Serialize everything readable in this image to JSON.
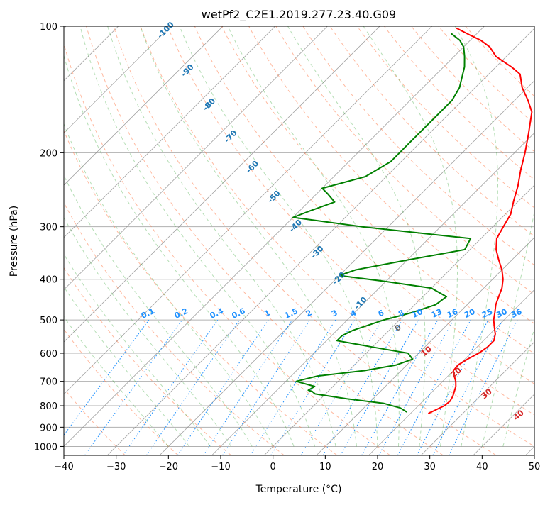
{
  "chart_data": {
    "type": "line",
    "subtype": "skew-t log-p sounding",
    "title": "wetPf2_C2E1.2019.277.23.40.G09",
    "xlabel": "Temperature (°C)",
    "ylabel": "Pressure (hPa)",
    "xlim": [
      -40,
      50
    ],
    "ylim": [
      1050,
      100
    ],
    "yscale": "log",
    "x_ticks": [
      -40,
      -30,
      -20,
      -10,
      0,
      10,
      20,
      30,
      40,
      50
    ],
    "y_ticks": [
      100,
      200,
      300,
      400,
      500,
      600,
      700,
      800,
      900,
      1000
    ],
    "grid": true,
    "colors": {
      "temperature": "#ff0000",
      "dewpoint": "#008000",
      "isotherms": "#888888",
      "dry_adiabats": "#ff7f50",
      "moist_adiabats": "#2ca02c",
      "mixing_ratio": "#1e90ff",
      "skewed_label": "#1f77b4",
      "dry_adiabat_label": "#d62728",
      "zero_label": "#666666"
    },
    "series": [
      {
        "key": "temperature",
        "points": [
          [
            23.4,
            835
          ],
          [
            25.0,
            800
          ],
          [
            25.2,
            780
          ],
          [
            24.8,
            760
          ],
          [
            23.5,
            720
          ],
          [
            22.5,
            700
          ],
          [
            21.2,
            680
          ],
          [
            20.0,
            660
          ],
          [
            19.8,
            640
          ],
          [
            20.5,
            620
          ],
          [
            21.5,
            600
          ],
          [
            22.0,
            580
          ],
          [
            22.0,
            560
          ],
          [
            21.0,
            540
          ],
          [
            19.5,
            520
          ],
          [
            18.0,
            500
          ],
          [
            16.8,
            480
          ],
          [
            15.5,
            460
          ],
          [
            14.5,
            440
          ],
          [
            13.5,
            420
          ],
          [
            12.0,
            400
          ],
          [
            10.0,
            380
          ],
          [
            7.5,
            360
          ],
          [
            5.0,
            340
          ],
          [
            3.0,
            320
          ],
          [
            2.0,
            300
          ],
          [
            1.0,
            280
          ],
          [
            -1.0,
            260
          ],
          [
            -3.0,
            240
          ],
          [
            -5.5,
            220
          ],
          [
            -8.0,
            200
          ],
          [
            -11.0,
            180
          ],
          [
            -14.5,
            160
          ],
          [
            -17.5,
            150
          ],
          [
            -21.0,
            140
          ],
          [
            -24.0,
            130
          ],
          [
            -27.0,
            125
          ],
          [
            -32.0,
            118
          ],
          [
            -35.0,
            112
          ],
          [
            -38.0,
            108
          ],
          [
            -41.0,
            105
          ],
          [
            -43.0,
            103
          ],
          [
            -45.0,
            101
          ]
        ]
      },
      {
        "key": "dewpoint",
        "points": [
          [
            19.0,
            828
          ],
          [
            17.0,
            810
          ],
          [
            13.0,
            790
          ],
          [
            5.0,
            770
          ],
          [
            -2.0,
            750
          ],
          [
            -3.0,
            740
          ],
          [
            -4.0,
            735
          ],
          [
            -3.5,
            720
          ],
          [
            -8.0,
            700
          ],
          [
            -5.0,
            680
          ],
          [
            3.0,
            660
          ],
          [
            8.0,
            640
          ],
          [
            10.0,
            620
          ],
          [
            8.0,
            600
          ],
          [
            0.0,
            580
          ],
          [
            -8.0,
            560
          ],
          [
            -8.0,
            545
          ],
          [
            -7.0,
            530
          ],
          [
            -3.0,
            500
          ],
          [
            1.0,
            480
          ],
          [
            4.0,
            460
          ],
          [
            4.5,
            440
          ],
          [
            0.0,
            420
          ],
          [
            -10.0,
            405
          ],
          [
            -20.0,
            392
          ],
          [
            -18.0,
            380
          ],
          [
            -10.0,
            360
          ],
          [
            -1.0,
            340
          ],
          [
            -2.0,
            320
          ],
          [
            -25.0,
            300
          ],
          [
            -40.0,
            285
          ],
          [
            -38.0,
            275
          ],
          [
            -35.0,
            262
          ],
          [
            -38.0,
            250
          ],
          [
            -40.0,
            243
          ],
          [
            -34.0,
            228
          ],
          [
            -32.0,
            210
          ],
          [
            -32.0,
            190
          ],
          [
            -32.0,
            170
          ],
          [
            -32.0,
            150
          ],
          [
            -33.0,
            140
          ],
          [
            -36.0,
            125
          ],
          [
            -38.0,
            118
          ],
          [
            -40.0,
            112
          ],
          [
            -42.0,
            108
          ],
          [
            -45.0,
            104
          ]
        ]
      }
    ],
    "annotations": {
      "skewed_labels": [
        -100,
        -90,
        -80,
        -70,
        -60,
        -50,
        -40,
        -30,
        -20,
        -10
      ],
      "mixing_ratio_labels": [
        "0.1",
        "0.2",
        "0.4",
        "0.6",
        "1",
        "1.5",
        "2",
        "3",
        "4",
        "6",
        "8",
        "10",
        "13",
        "16",
        "20",
        "25",
        "30",
        "36"
      ],
      "dry_adiabat_labels": [
        "0",
        "10",
        "20",
        "30",
        "40"
      ]
    }
  }
}
